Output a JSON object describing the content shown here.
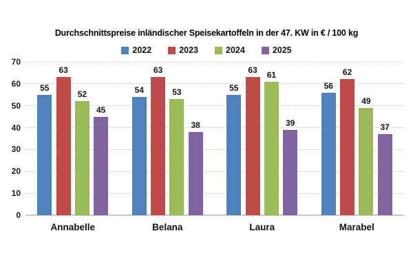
{
  "chart_data": {
    "type": "bar",
    "title": "Durchschnittspreise inländischer Speisekartoffeln in der 47. KW in € / 100 kg",
    "categories": [
      "Annabelle",
      "Belana",
      "Laura",
      "Marabel"
    ],
    "series": [
      {
        "name": "2022",
        "color": "#4F81BD",
        "values": [
          55,
          54,
          55,
          56
        ]
      },
      {
        "name": "2023",
        "color": "#BE4B48",
        "values": [
          63,
          63,
          63,
          62
        ]
      },
      {
        "name": "2024",
        "color": "#9BBB59",
        "values": [
          52,
          53,
          61,
          49
        ]
      },
      {
        "name": "2025",
        "color": "#8064A2",
        "values": [
          45,
          38,
          39,
          37
        ]
      }
    ],
    "ylim": [
      0,
      70
    ],
    "yticks": [
      0,
      10,
      20,
      30,
      40,
      50,
      60,
      70
    ],
    "grid": "horizontal-dotted",
    "legend_position": "top-center",
    "value_labels": "above-bars"
  },
  "colors": {
    "background": "#ffffff",
    "gridline": "#c4c9ce",
    "axis_line": "#c6c6c6",
    "text": "#111111"
  }
}
